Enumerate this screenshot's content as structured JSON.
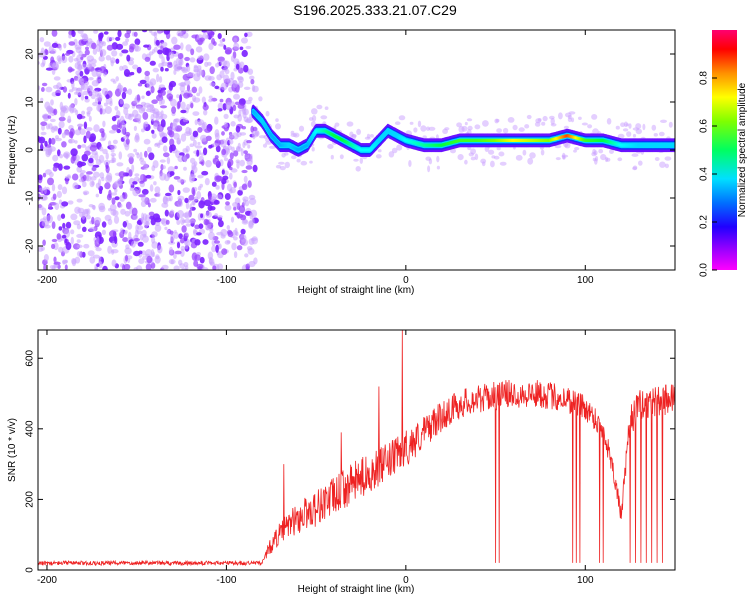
{
  "title": "S196.2025.333.21.07.C29",
  "chart_data": [
    {
      "type": "heatmap",
      "xlabel": "Height of straight line (km)",
      "ylabel": "Frequency (Hz)",
      "xlim": [
        -205,
        150
      ],
      "ylim": [
        -25,
        25
      ],
      "xticks": [
        -200,
        -100,
        0,
        100
      ],
      "yticks": [
        -20,
        -10,
        0,
        10,
        20
      ],
      "colorbar": {
        "label": "Normalized spectral amplitude",
        "range": [
          0,
          1
        ],
        "ticks": [
          0.0,
          0.2,
          0.4,
          0.6,
          0.8
        ],
        "tick_labels": [
          "0.0",
          "0.2",
          "0.4",
          "0.6",
          "0.8"
        ],
        "colors": [
          "#ff00ff",
          "#8000ff",
          "#0000ff",
          "#00b0ff",
          "#00ffff",
          "#00ff40",
          "#80ff00",
          "#ffff00",
          "#ff8000",
          "#ff0000",
          "#ff0080"
        ]
      },
      "noise_region_x": [
        -205,
        -85
      ],
      "ridge": {
        "x": [
          -85,
          -80,
          -75,
          -70,
          -65,
          -60,
          -55,
          -50,
          -45,
          -40,
          -35,
          -30,
          -25,
          -20,
          -15,
          -10,
          -5,
          0,
          10,
          20,
          30,
          40,
          50,
          60,
          70,
          80,
          90,
          100,
          110,
          120,
          130,
          140,
          150
        ],
        "freq": [
          8,
          6,
          3,
          1,
          1,
          0,
          1,
          4,
          4,
          3,
          2,
          1,
          0,
          0,
          2,
          4,
          3,
          2,
          1,
          1,
          2,
          2,
          2,
          2,
          2,
          2,
          3,
          2,
          2,
          1,
          1,
          1,
          1
        ],
        "amplitude": [
          0.3,
          0.35,
          0.3,
          0.3,
          0.35,
          0.3,
          0.3,
          0.4,
          0.45,
          0.5,
          0.5,
          0.45,
          0.4,
          0.4,
          0.35,
          0.35,
          0.35,
          0.4,
          0.45,
          0.5,
          0.55,
          0.55,
          0.6,
          0.7,
          0.65,
          0.6,
          0.85,
          0.55,
          0.5,
          0.4,
          0.35,
          0.35,
          0.35
        ]
      }
    },
    {
      "type": "line",
      "series_color": "#ee2222",
      "xlabel": "Height of straight line (km)",
      "ylabel": "SNR (10 * v/v)",
      "xlim": [
        -205,
        150
      ],
      "ylim": [
        0,
        680
      ],
      "xticks": [
        -200,
        -100,
        0,
        100
      ],
      "yticks": [
        0,
        200,
        400,
        600
      ],
      "series": [
        {
          "name": "SNR",
          "x": [
            -205,
            -190,
            -175,
            -160,
            -145,
            -130,
            -115,
            -100,
            -90,
            -80,
            -76,
            -72,
            -68,
            -64,
            -60,
            -55,
            -50,
            -45,
            -40,
            -35,
            -30,
            -25,
            -20,
            -15,
            -10,
            -5,
            0,
            5,
            10,
            15,
            20,
            25,
            30,
            35,
            40,
            45,
            50,
            55,
            60,
            65,
            70,
            75,
            80,
            85,
            90,
            95,
            100,
            105,
            110,
            115,
            120,
            125,
            130,
            135,
            140,
            145,
            150
          ],
          "values": [
            18,
            20,
            19,
            20,
            21,
            19,
            20,
            20,
            19,
            21,
            60,
            90,
            110,
            130,
            140,
            160,
            170,
            190,
            200,
            220,
            240,
            255,
            270,
            285,
            300,
            320,
            340,
            360,
            385,
            410,
            430,
            450,
            465,
            475,
            480,
            485,
            490,
            495,
            495,
            495,
            495,
            495,
            490,
            485,
            480,
            470,
            455,
            430,
            390,
            300,
            150,
            420,
            460,
            470,
            470,
            480,
            490
          ],
          "noise_amp": [
            12,
            12,
            12,
            12,
            12,
            12,
            12,
            12,
            12,
            12,
            45,
            60,
            70,
            80,
            90,
            100,
            105,
            110,
            115,
            115,
            115,
            115,
            110,
            110,
            110,
            105,
            105,
            100,
            95,
            90,
            85,
            85,
            85,
            80,
            80,
            80,
            80,
            80,
            80,
            80,
            80,
            80,
            80,
            80,
            80,
            80,
            75,
            70,
            70,
            60,
            50,
            90,
            90,
            90,
            90,
            90,
            90
          ]
        }
      ],
      "spikes": [
        {
          "x": -2,
          "value": 680
        },
        {
          "x": -15,
          "value": 520
        },
        {
          "x": -36,
          "value": 390
        },
        {
          "x": -68,
          "value": 300
        }
      ],
      "dropouts": [
        50,
        52,
        93,
        95,
        97,
        108,
        110,
        125,
        128,
        131,
        134,
        137,
        140,
        143
      ]
    }
  ]
}
